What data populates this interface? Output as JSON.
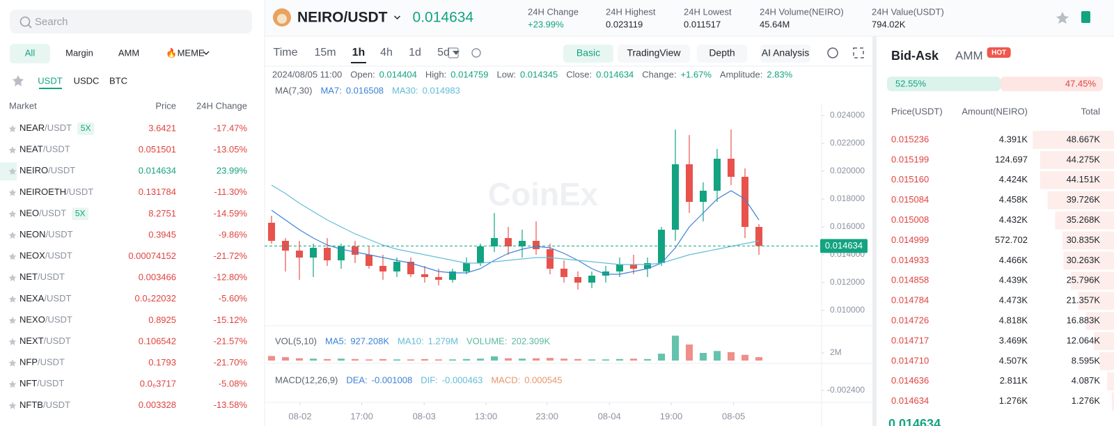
{
  "search": {
    "placeholder": "Search"
  },
  "market_tabs": [
    "All",
    "Margin",
    "AMM",
    "🔥MEME"
  ],
  "quote_tabs": [
    "USDT",
    "USDC",
    "BTC"
  ],
  "market_columns": [
    "Market",
    "Price",
    "24H Change"
  ],
  "markets": [
    {
      "base": "NEAR",
      "quote": "/USDT",
      "badge": "5X",
      "price": "3.6421",
      "change": "-17.47%"
    },
    {
      "base": "NEAT",
      "quote": "/USDT",
      "price": "0.051501",
      "change": "-13.05%"
    },
    {
      "base": "NEIRO",
      "quote": "/USDT",
      "price": "0.014634",
      "change": "23.99%"
    },
    {
      "base": "NEIROETH",
      "quote": "/USDT",
      "price": "0.131784",
      "change": "-11.30%"
    },
    {
      "base": "NEO",
      "quote": "/USDT",
      "badge": "5X",
      "price": "8.2751",
      "change": "-14.59%"
    },
    {
      "base": "NEON",
      "quote": "/USDT",
      "price": "0.3945",
      "change": "-9.86%"
    },
    {
      "base": "NEOX",
      "quote": "/USDT",
      "price": "0.00074152",
      "change": "-21.72%"
    },
    {
      "base": "NET",
      "quote": "/USDT",
      "price": "0.003466",
      "change": "-12.80%"
    },
    {
      "base": "NEXA",
      "quote": "/USDT",
      "price": "0.0₅22032",
      "change": "-5.60%"
    },
    {
      "base": "NEXO",
      "quote": "/USDT",
      "price": "0.8925",
      "change": "-15.12%"
    },
    {
      "base": "NEXT",
      "quote": "/USDT",
      "price": "0.106542",
      "change": "-21.57%"
    },
    {
      "base": "NFP",
      "quote": "/USDT",
      "price": "0.1793",
      "change": "-21.70%"
    },
    {
      "base": "NFT",
      "quote": "/USDT",
      "price": "0.0₆3717",
      "change": "-5.08%"
    },
    {
      "base": "NFTB",
      "quote": "/USDT",
      "price": "0.003328",
      "change": "-13.58%"
    }
  ],
  "pair": {
    "symbol": "NEIRO/USDT",
    "price": "0.014634"
  },
  "stats": [
    {
      "label": "24H Change",
      "value": "+23.99%"
    },
    {
      "label": "24H Highest",
      "value": "0.023119"
    },
    {
      "label": "24H Lowest",
      "value": "0.011517"
    },
    {
      "label": "24H Volume(NEIRO)",
      "value": "45.64M"
    },
    {
      "label": "24H Value(USDT)",
      "value": "794.02K"
    }
  ],
  "intervals": [
    "Time",
    "15m",
    "1h",
    "4h",
    "1d",
    "5d"
  ],
  "views": [
    "Basic",
    "TradingView",
    "Depth",
    "AI Analysis"
  ],
  "ohlc_info": {
    "time": "2024/08/05 11:00",
    "items": [
      {
        "label": "Open:",
        "value": "0.014404"
      },
      {
        "label": "High:",
        "value": "0.014759"
      },
      {
        "label": "Low:",
        "value": "0.014345"
      },
      {
        "label": "Close:",
        "value": "0.014634"
      },
      {
        "label": "Change:",
        "value": "+1.67%"
      },
      {
        "label": "Amplitude:",
        "value": "2.83%"
      }
    ]
  },
  "ma_info": {
    "title": "MA(7,30)",
    "items": [
      {
        "label": "MA7:",
        "value": "0.016508"
      },
      {
        "label": "MA30:",
        "value": "0.014983"
      }
    ]
  },
  "vol_info": {
    "title": "VOL(5,10)",
    "items": [
      {
        "label": "MA5:",
        "value": "927.208K"
      },
      {
        "label": "MA10:",
        "value": "1.279M"
      },
      {
        "label": "VOLUME:",
        "value": "202.309K"
      }
    ]
  },
  "macd_info": {
    "title": "MACD(12,26,9)",
    "items": [
      {
        "label": "DEA:",
        "value": "-0.001008"
      },
      {
        "label": "DIF:",
        "value": "-0.000463"
      },
      {
        "label": "MACD:",
        "value": "0.000545"
      }
    ]
  },
  "watermark": "CoinEx",
  "chart_data": {
    "type": "candlestick",
    "xlim": [
      0,
      40
    ],
    "xticks": [
      {
        "value": 2.55,
        "label": "08-02"
      },
      {
        "value": 6.98,
        "label": "17:00"
      },
      {
        "value": 11.46,
        "label": "08-03"
      },
      {
        "value": 15.9,
        "label": "13:00"
      },
      {
        "value": 20.28,
        "label": "23:00"
      },
      {
        "value": 24.76,
        "label": "08-04"
      },
      {
        "value": 29.2,
        "label": "19:00"
      },
      {
        "value": 33.68,
        "label": "08-05"
      }
    ],
    "ylim": [
      0.009,
      0.0247
    ],
    "yticks": [
      {
        "value": 0.01,
        "label": "0.010000"
      },
      {
        "value": 0.012,
        "label": "0.012000"
      },
      {
        "value": 0.014,
        "label": "0.014000"
      },
      {
        "value": 0.016,
        "label": "0.016000"
      },
      {
        "value": 0.018,
        "label": "0.018000"
      },
      {
        "value": 0.02,
        "label": "0.020000"
      },
      {
        "value": 0.022,
        "label": "0.022000"
      },
      {
        "value": 0.024,
        "label": "0.024000"
      }
    ],
    "up_color": "#13a381",
    "down_color": "#e8524c",
    "open": [
      0.0163,
      0.015,
      0.0143,
      0.0138,
      0.0145,
      0.0136,
      0.0146,
      0.014,
      0.0132,
      0.0128,
      0.0135,
      0.0126,
      0.0124,
      0.0122,
      0.0128,
      0.0134,
      0.0146,
      0.0152,
      0.0146,
      0.015,
      0.0144,
      0.013,
      0.0124,
      0.012,
      0.0125,
      0.0128,
      0.0133,
      0.013,
      0.0134,
      0.0158,
      0.0205,
      0.0178,
      0.0186,
      0.0209,
      0.0196,
      0.016
    ],
    "high": [
      0.0168,
      0.0152,
      0.015,
      0.0148,
      0.0152,
      0.0148,
      0.015,
      0.0146,
      0.014,
      0.0138,
      0.0138,
      0.0132,
      0.013,
      0.013,
      0.0138,
      0.0148,
      0.017,
      0.016,
      0.0158,
      0.0164,
      0.0148,
      0.0136,
      0.0128,
      0.0128,
      0.0132,
      0.0138,
      0.014,
      0.0138,
      0.016,
      0.023,
      0.0226,
      0.0192,
      0.0216,
      0.023,
      0.0202,
      0.0162
    ],
    "low": [
      0.0148,
      0.0128,
      0.0122,
      0.0124,
      0.0132,
      0.013,
      0.0134,
      0.013,
      0.0122,
      0.0124,
      0.0124,
      0.012,
      0.0118,
      0.012,
      0.0126,
      0.0132,
      0.0142,
      0.014,
      0.0138,
      0.014,
      0.0126,
      0.012,
      0.0115,
      0.0116,
      0.012,
      0.0124,
      0.0126,
      0.0124,
      0.0132,
      0.015,
      0.017,
      0.0164,
      0.0178,
      0.019,
      0.0152,
      0.014
    ],
    "close": [
      0.015,
      0.0143,
      0.0138,
      0.0145,
      0.0136,
      0.0146,
      0.014,
      0.0132,
      0.0128,
      0.0135,
      0.0126,
      0.0124,
      0.0122,
      0.0128,
      0.0134,
      0.0146,
      0.0152,
      0.0146,
      0.015,
      0.0144,
      0.013,
      0.0124,
      0.012,
      0.0125,
      0.0128,
      0.0133,
      0.013,
      0.0134,
      0.0158,
      0.0205,
      0.0178,
      0.0186,
      0.0209,
      0.0196,
      0.016,
      0.014634
    ],
    "ma_lines": [
      {
        "color": "#3b82d6",
        "values": [
          0.0172,
          0.0165,
          0.0158,
          0.0152,
          0.0147,
          0.0144,
          0.0142,
          0.014,
          0.0138,
          0.0136,
          0.0134,
          0.0131,
          0.0128,
          0.0127,
          0.0127,
          0.013,
          0.0136,
          0.0141,
          0.0144,
          0.0146,
          0.0145,
          0.0141,
          0.0136,
          0.013,
          0.0126,
          0.0126,
          0.0128,
          0.013,
          0.0134,
          0.0145,
          0.016,
          0.017,
          0.018,
          0.0186,
          0.018,
          0.0165
        ]
      },
      {
        "color": "#62bcd9",
        "values": [
          0.019,
          0.0184,
          0.0177,
          0.0171,
          0.0165,
          0.016,
          0.0155,
          0.0151,
          0.0147,
          0.0144,
          0.0142,
          0.014,
          0.0138,
          0.0136,
          0.0134,
          0.0134,
          0.0135,
          0.0136,
          0.0137,
          0.0138,
          0.0138,
          0.0137,
          0.0136,
          0.0135,
          0.0134,
          0.0133,
          0.0133,
          0.0133,
          0.0134,
          0.0137,
          0.014,
          0.0142,
          0.0144,
          0.0146,
          0.0148,
          0.015
        ]
      }
    ],
    "last_price": {
      "value": 0.014634,
      "label": "0.014634"
    },
    "volume": {
      "ylim": [
        0,
        8000000
      ],
      "yticks": [
        {
          "value": 2000000,
          "label": "2M"
        }
      ],
      "values": [
        1200000,
        900000,
        600000,
        500000,
        400000,
        500000,
        400000,
        300000,
        400000,
        300000,
        300000,
        400000,
        300000,
        300000,
        400000,
        500000,
        1100000,
        600000,
        500000,
        600000,
        700000,
        500000,
        400000,
        300000,
        300000,
        400000,
        500000,
        400000,
        1800000,
        6500000,
        4200000,
        2000000,
        2500000,
        2200000,
        1500000,
        900000
      ]
    },
    "macd": {
      "ylim": [
        -0.004,
        0.0012
      ],
      "yticks": [
        {
          "value": -0.0024,
          "label": "-0.002400"
        }
      ]
    }
  },
  "order_book": {
    "tabs": [
      "Bid-Ask",
      "AMM"
    ],
    "badge": "HOT",
    "buy_ratio": "52.55%",
    "sell_ratio": "47.45%",
    "columns": [
      "Price(USDT)",
      "Amount(NEIRO)",
      "Total"
    ],
    "asks": [
      [
        "0.015236",
        "4.391K",
        "48.667K"
      ],
      [
        "0.015199",
        "124.697",
        "44.275K"
      ],
      [
        "0.015160",
        "4.424K",
        "44.151K"
      ],
      [
        "0.015084",
        "4.458K",
        "39.726K"
      ],
      [
        "0.015008",
        "4.432K",
        "35.268K"
      ],
      [
        "0.014999",
        "572.702",
        "30.835K"
      ],
      [
        "0.014933",
        "4.466K",
        "30.263K"
      ],
      [
        "0.014858",
        "4.439K",
        "25.796K"
      ],
      [
        "0.014784",
        "4.473K",
        "21.357K"
      ],
      [
        "0.014726",
        "4.818K",
        "16.883K"
      ],
      [
        "0.014717",
        "3.469K",
        "12.064K"
      ],
      [
        "0.014710",
        "4.507K",
        "8.595K"
      ],
      [
        "0.014636",
        "2.811K",
        "4.087K"
      ],
      [
        "0.014634",
        "1.276K",
        "1.276K"
      ]
    ],
    "last_price": "0.014634"
  }
}
